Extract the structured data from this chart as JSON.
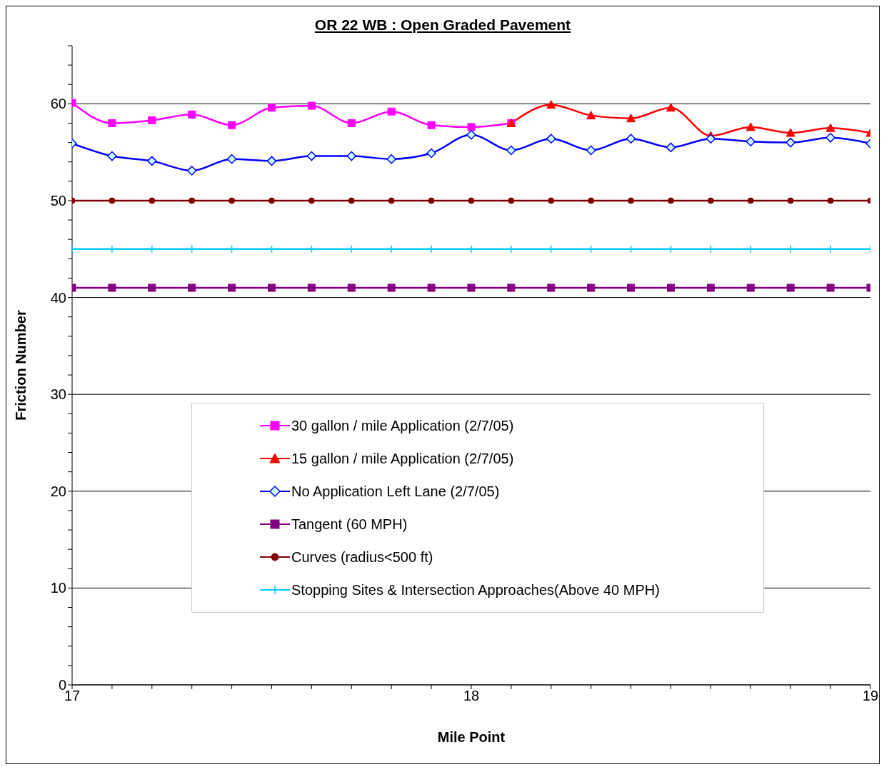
{
  "chart_data": {
    "type": "line",
    "title": "OR 22 WB : Open Graded Pavement",
    "xlabel": "Mile Point",
    "ylabel": "Friction Number",
    "x": [
      17,
      17.1,
      17.2,
      17.3,
      17.4,
      17.5,
      17.6,
      17.7,
      17.8,
      17.9,
      18,
      18.1,
      18.2,
      18.3,
      18.4,
      18.5,
      18.6,
      18.7,
      18.8,
      18.9,
      19
    ],
    "series": [
      {
        "name": "30 gallon / mile Application (2/7/05)",
        "color": "#ff00ff",
        "marker": "square",
        "values": [
          60.1,
          58.0,
          58.3,
          58.9,
          57.8,
          59.6,
          59.8,
          58.0,
          59.2,
          57.8,
          57.6,
          58.0,
          null,
          null,
          null,
          null,
          null,
          null,
          null,
          null,
          null
        ]
      },
      {
        "name": "15 gallon / mile Application (2/7/05)",
        "color": "#ff0000",
        "marker": "triangle",
        "values": [
          null,
          null,
          null,
          null,
          null,
          null,
          null,
          null,
          null,
          null,
          null,
          58.0,
          59.9,
          58.8,
          58.5,
          59.6,
          56.7,
          57.6,
          57.0,
          57.5,
          57.0
        ]
      },
      {
        "name": "No Application Left Lane (2/7/05)",
        "color": "#0000ff",
        "marker": "diamond",
        "values": [
          55.9,
          54.6,
          54.1,
          53.1,
          54.3,
          54.1,
          54.6,
          54.6,
          54.3,
          54.9,
          56.8,
          55.2,
          56.4,
          55.2,
          56.4,
          55.5,
          56.4,
          56.1,
          56.0,
          56.5,
          55.9
        ]
      },
      {
        "name": "Tangent (60 MPH)",
        "color": "#800080",
        "marker": "square",
        "values": [
          41,
          41,
          41,
          41,
          41,
          41,
          41,
          41,
          41,
          41,
          41,
          41,
          41,
          41,
          41,
          41,
          41,
          41,
          41,
          41,
          41
        ]
      },
      {
        "name": "Curves (radius<500 ft)",
        "color": "#800000",
        "marker": "circle",
        "values": [
          50,
          50,
          50,
          50,
          50,
          50,
          50,
          50,
          50,
          50,
          50,
          50,
          50,
          50,
          50,
          50,
          50,
          50,
          50,
          50,
          50
        ]
      },
      {
        "name": "Stopping Sites & Intersection Approaches(Above 40 MPH)",
        "color": "#00ccff",
        "marker": "cross",
        "values": [
          45,
          45,
          45,
          45,
          45,
          45,
          45,
          45,
          45,
          45,
          45,
          45,
          45,
          45,
          45,
          45,
          45,
          45,
          45,
          45,
          45
        ]
      }
    ],
    "xlim": [
      17,
      19
    ],
    "xticks": [
      17,
      {
        "value": 17.1,
        "label": null
      },
      {
        "value": 17.2,
        "label": null
      },
      {
        "value": 17.3,
        "label": null
      },
      {
        "value": 17.4,
        "label": null
      },
      {
        "value": 17.5,
        "label": null
      },
      {
        "value": 17.6,
        "label": null
      },
      {
        "value": 17.7,
        "label": null
      },
      {
        "value": 17.8,
        "label": null
      },
      {
        "value": 17.9,
        "label": null
      },
      18,
      {
        "value": 18.1,
        "label": null
      },
      {
        "value": 18.2,
        "label": null
      },
      {
        "value": 18.3,
        "label": null
      },
      {
        "value": 18.4,
        "label": null
      },
      {
        "value": 18.5,
        "label": null
      },
      {
        "value": 18.6,
        "label": null
      },
      {
        "value": 18.7,
        "label": null
      },
      {
        "value": 18.8,
        "label": null
      },
      {
        "value": 18.9,
        "label": null
      },
      19
    ],
    "ylim": [
      0,
      66
    ],
    "yticks": [
      0,
      {
        "value": 2,
        "label": null
      },
      {
        "value": 4,
        "label": null
      },
      {
        "value": 6,
        "label": null
      },
      {
        "value": 8,
        "label": null
      },
      10,
      {
        "value": 12,
        "label": null
      },
      {
        "value": 14,
        "label": null
      },
      {
        "value": 16,
        "label": null
      },
      {
        "value": 18,
        "label": null
      },
      20,
      {
        "value": 22,
        "label": null
      },
      {
        "value": 24,
        "label": null
      },
      {
        "value": 26,
        "label": null
      },
      {
        "value": 28,
        "label": null
      },
      30,
      {
        "value": 32,
        "label": null
      },
      {
        "value": 34,
        "label": null
      },
      {
        "value": 36,
        "label": null
      },
      {
        "value": 38,
        "label": null
      },
      40,
      {
        "value": 42,
        "label": null
      },
      {
        "value": 44,
        "label": null
      },
      {
        "value": 46,
        "label": null
      },
      {
        "value": 48,
        "label": null
      },
      50,
      {
        "value": 52,
        "label": null
      },
      {
        "value": 54,
        "label": null
      },
      {
        "value": 56,
        "label": null
      },
      {
        "value": 58,
        "label": null
      },
      60,
      {
        "value": 62,
        "label": null
      },
      {
        "value": 64,
        "label": null
      },
      {
        "value": 66,
        "label": null
      }
    ],
    "grid": "y",
    "legend": "bottom",
    "line_style": "solid"
  }
}
